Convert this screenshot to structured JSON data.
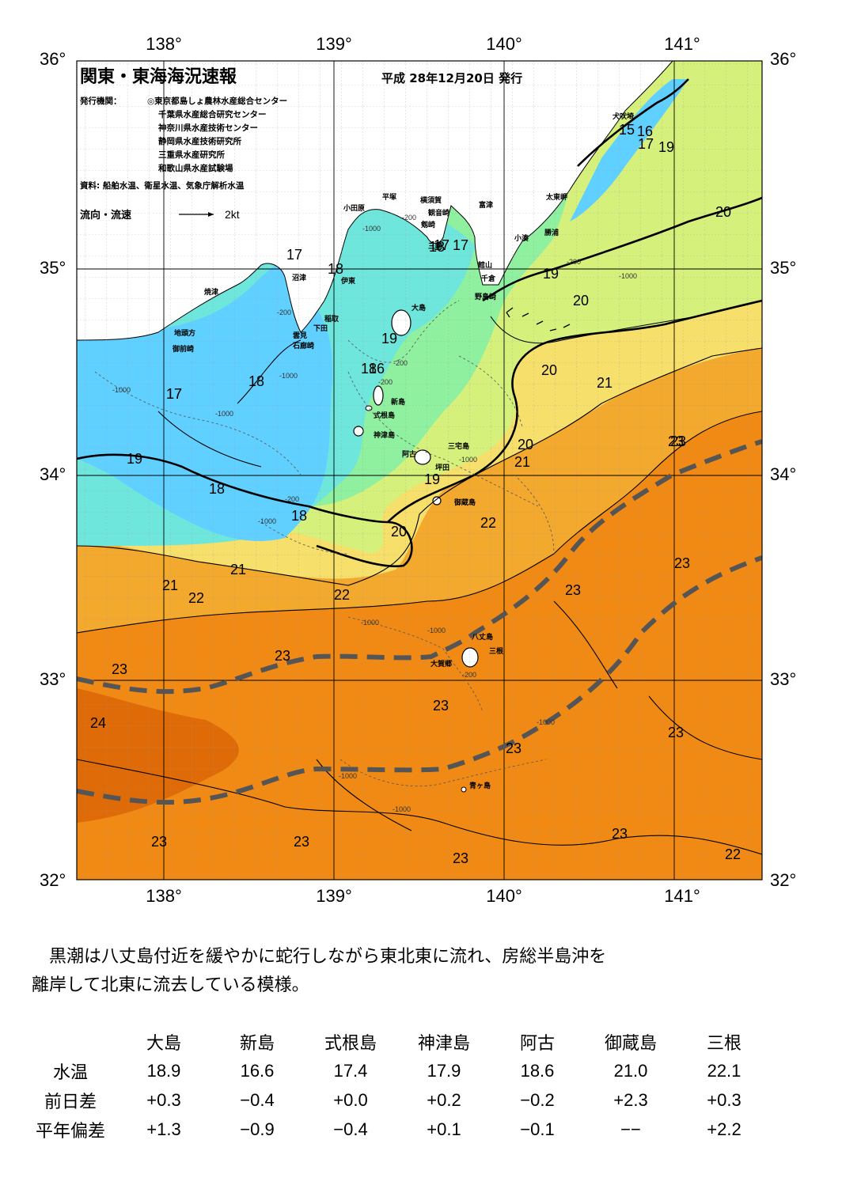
{
  "map": {
    "title": "関東・東海海況速報",
    "issue_date": "平成 28年12月20日 発行",
    "issuers_label": "発行機関：",
    "issuers": [
      "◎東京都島しょ農林水産総合センター",
      "千葉県水産総合研究センター",
      "神奈川県水産技術センター",
      "静岡県水産技術研究所",
      "三重県水産研究所",
      "和歌山県水産試験場"
    ],
    "sources": "資料: 船舶水温、衛星水温、気象庁解析水温",
    "legend_label": "流向・流速",
    "legend_scale": "2kt",
    "lon_labels": [
      "138°",
      "139°",
      "140°",
      "141°"
    ],
    "lat_labels": [
      "36°",
      "35°",
      "34°",
      "33°",
      "32°"
    ],
    "palette": {
      "t17": "#5fd0ff",
      "t18": "#6ee6dc",
      "t19": "#8ff0a0",
      "t20": "#d6f07c",
      "t21": "#f6df6a",
      "t22": "#f3a82e",
      "t23": "#f08a14",
      "t24": "#de6a08",
      "land": "#ffffff",
      "kuroshio_axis": "#555555"
    },
    "isotherm_labels": [
      "15",
      "16",
      "17",
      "17",
      "18",
      "17",
      "18",
      "19",
      "19",
      "20",
      "20",
      "19",
      "20",
      "21",
      "18",
      "16",
      "17",
      "18",
      "17",
      "19",
      "18",
      "18",
      "20",
      "21",
      "19",
      "20",
      "22",
      "21",
      "21",
      "22",
      "22",
      "23",
      "23",
      "23",
      "23",
      "24",
      "23",
      "23",
      "23",
      "23",
      "23",
      "23",
      "23",
      "23",
      "22",
      "23",
      "17"
    ],
    "depth_labels": [
      "-1000",
      "-200",
      "-1000",
      "-200",
      "-1000",
      "-200",
      "-1000",
      "-200",
      "-200",
      "-1000",
      "-1000",
      "-1000",
      "-200",
      "-1000",
      "-200",
      "-1000",
      "-1000",
      "-1000",
      "-1000"
    ],
    "place_names": [
      "犬吠埼",
      "太東岬",
      "勝浦",
      "小湊",
      "富津",
      "館山",
      "千倉",
      "野島崎",
      "小田原",
      "平塚",
      "横須賀",
      "観音崎",
      "剱崎",
      "三崎",
      "沼津",
      "伊東",
      "稲取",
      "下田",
      "雲見",
      "石廊崎",
      "焼津",
      "地頭方",
      "御前崎",
      "大島",
      "新島",
      "式根島",
      "神津島",
      "三宅島",
      "阿古",
      "坪田",
      "御蔵島",
      "八丈島",
      "三根",
      "大賀郷",
      "青ヶ島"
    ]
  },
  "summary": {
    "line1": "黒潮は八丈島付近を緩やかに蛇行しながら東北東に流れ、房総半島沖を",
    "line2": "離岸して北東に流去している模様。"
  },
  "table": {
    "columns": [
      "大島",
      "新島",
      "式根島",
      "神津島",
      "阿古",
      "御蔵島",
      "三根"
    ],
    "rows": [
      {
        "label": "水温",
        "values": [
          "18.9",
          "16.6",
          "17.4",
          "17.9",
          "18.6",
          "21.0",
          "22.1"
        ]
      },
      {
        "label": "前日差",
        "values": [
          "+0.3",
          "−0.4",
          "+0.0",
          "+0.2",
          "−0.2",
          "+2.3",
          "+0.3"
        ]
      },
      {
        "label": "平年偏差",
        "values": [
          "+1.3",
          "−0.9",
          "−0.4",
          "+0.1",
          "−0.1",
          "−−",
          "+2.2"
        ]
      }
    ]
  }
}
